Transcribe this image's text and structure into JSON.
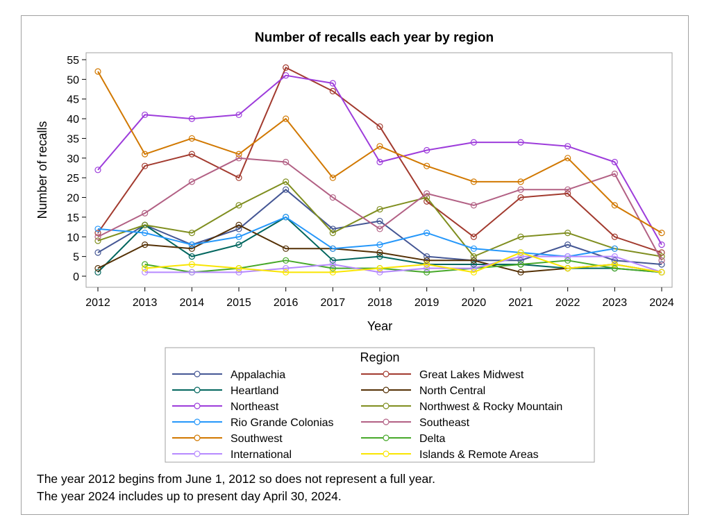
{
  "chart_data": {
    "type": "line",
    "title": "Number of recalls each year by region",
    "xlabel": "Year",
    "ylabel": "Number of recalls",
    "x": [
      2012,
      2013,
      2014,
      2015,
      2016,
      2017,
      2018,
      2019,
      2020,
      2021,
      2022,
      2023,
      2024
    ],
    "ylim": [
      0,
      55
    ],
    "yticks": [
      0,
      5,
      10,
      15,
      20,
      25,
      30,
      35,
      40,
      45,
      50,
      55
    ],
    "legend_title": "Region",
    "legend_position": "bottom",
    "series": [
      {
        "name": "Appalachia",
        "color": "#445694",
        "values": [
          6,
          13,
          8,
          12,
          22,
          12,
          14,
          5,
          4,
          4,
          8,
          4,
          3
        ]
      },
      {
        "name": "Great Lakes Midwest",
        "color": "#a23a2e",
        "values": [
          11,
          28,
          31,
          25,
          53,
          47,
          38,
          19,
          10,
          20,
          21,
          10,
          6
        ]
      },
      {
        "name": "Heartland",
        "color": "#01665e",
        "values": [
          1,
          13,
          5,
          8,
          15,
          4,
          5,
          3,
          3,
          3,
          2,
          2,
          1
        ]
      },
      {
        "name": "North Central",
        "color": "#543005",
        "values": [
          2,
          8,
          7,
          13,
          7,
          7,
          6,
          4,
          4,
          1,
          2,
          3,
          1
        ]
      },
      {
        "name": "Northeast",
        "color": "#9d3cdb",
        "values": [
          27,
          41,
          40,
          41,
          51,
          49,
          29,
          32,
          34,
          34,
          33,
          29,
          8
        ]
      },
      {
        "name": "Northwest & Rocky Mountain",
        "color": "#7f8e1f",
        "values": [
          9,
          13,
          11,
          18,
          24,
          11,
          17,
          20,
          5,
          10,
          11,
          7,
          5
        ]
      },
      {
        "name": "Rio Grande Colonias",
        "color": "#2597fa",
        "values": [
          12,
          11,
          8,
          10,
          15,
          7,
          8,
          11,
          7,
          6,
          5,
          7,
          null
        ]
      },
      {
        "name": "Southeast",
        "color": "#b26084",
        "values": [
          10,
          16,
          24,
          30,
          29,
          20,
          12,
          21,
          18,
          22,
          22,
          26,
          4
        ]
      },
      {
        "name": "Southwest",
        "color": "#d17800",
        "values": [
          52,
          31,
          35,
          31,
          40,
          25,
          33,
          28,
          24,
          24,
          30,
          18,
          11
        ]
      },
      {
        "name": "Delta",
        "color": "#47a82a",
        "values": [
          null,
          3,
          1,
          2,
          4,
          2,
          2,
          1,
          2,
          3,
          4,
          2,
          1
        ]
      },
      {
        "name": "International",
        "color": "#b689ff",
        "values": [
          null,
          1,
          1,
          1,
          2,
          3,
          1,
          2,
          2,
          5,
          5,
          5,
          1
        ]
      },
      {
        "name": "Islands & Remote Areas",
        "color": "#f9e500",
        "values": [
          null,
          2,
          3,
          2,
          1,
          1,
          2,
          3,
          1,
          6,
          2,
          3,
          1
        ]
      }
    ]
  },
  "footnotes": [
    "The year 2012 begins from June 1, 2012 so does not represent a full year.",
    "The year 2024 includes up to present day April 30, 2024."
  ]
}
